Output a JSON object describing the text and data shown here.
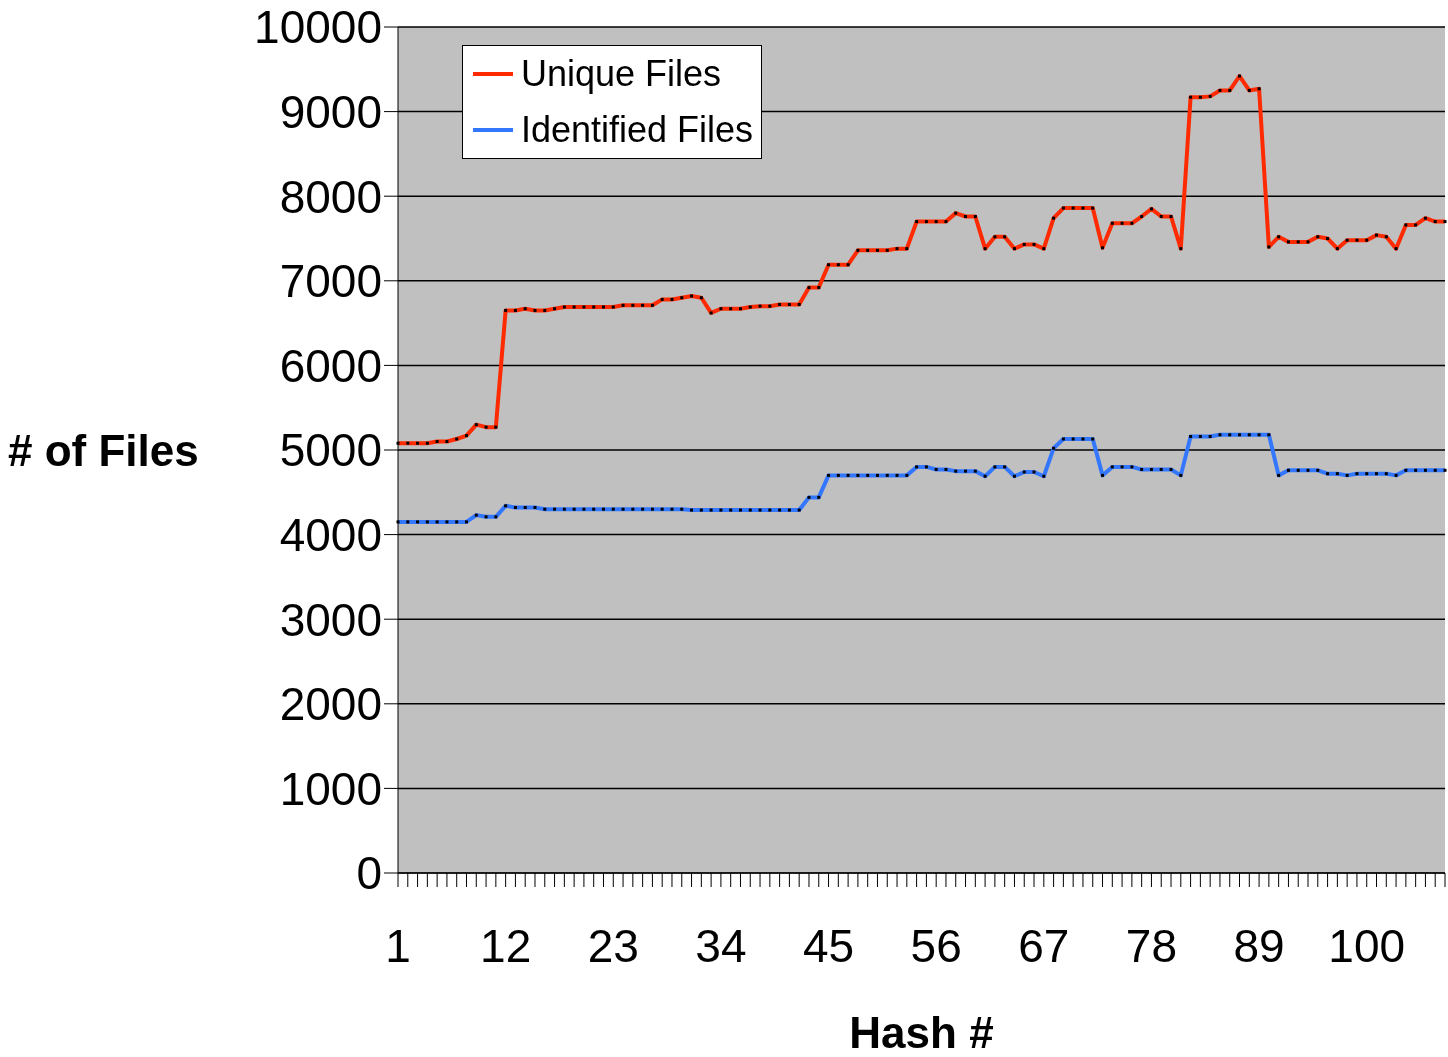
{
  "chart_data": {
    "type": "line",
    "xlabel": "Hash #",
    "ylabel": "# of Files",
    "categories": [
      "1",
      null,
      null,
      null,
      null,
      null,
      null,
      null,
      null,
      null,
      null,
      "12",
      null,
      null,
      null,
      null,
      null,
      null,
      null,
      null,
      null,
      null,
      "23",
      null,
      null,
      null,
      null,
      null,
      null,
      null,
      null,
      null,
      null,
      "34",
      null,
      null,
      null,
      null,
      null,
      null,
      null,
      null,
      null,
      null,
      "45",
      null,
      null,
      null,
      null,
      null,
      null,
      null,
      null,
      null,
      null,
      "56",
      null,
      null,
      null,
      null,
      null,
      null,
      null,
      null,
      null,
      null,
      "67",
      null,
      null,
      null,
      null,
      null,
      null,
      null,
      null,
      null,
      null,
      "78",
      null,
      null,
      null,
      null,
      null,
      null,
      null,
      null,
      null,
      null,
      "89",
      null,
      null,
      null,
      null,
      null,
      null,
      null,
      null,
      null,
      null,
      "100",
      null,
      null,
      null,
      null,
      null,
      null,
      null,
      null
    ],
    "series": [
      {
        "name": "Unique Files",
        "color": "#ff2a00",
        "values": [
          5080,
          5080,
          5080,
          5080,
          5100,
          5100,
          5130,
          5170,
          5300,
          5270,
          5270,
          6650,
          6650,
          6670,
          6650,
          6650,
          6670,
          6690,
          6690,
          6690,
          6690,
          6690,
          6690,
          6710,
          6710,
          6710,
          6710,
          6780,
          6780,
          6800,
          6820,
          6800,
          6620,
          6670,
          6670,
          6670,
          6690,
          6700,
          6700,
          6720,
          6720,
          6720,
          6920,
          6920,
          7190,
          7190,
          7190,
          7360,
          7360,
          7360,
          7360,
          7380,
          7380,
          7700,
          7700,
          7700,
          7700,
          7800,
          7760,
          7760,
          7380,
          7520,
          7520,
          7380,
          7430,
          7430,
          7380,
          7740,
          7860,
          7860,
          7860,
          7860,
          7390,
          7680,
          7680,
          7680,
          7760,
          7850,
          7760,
          7760,
          7380,
          9170,
          9170,
          9180,
          9250,
          9250,
          9420,
          9250,
          9270,
          7400,
          7520,
          7460,
          7460,
          7460,
          7520,
          7500,
          7380,
          7480,
          7480,
          7480,
          7540,
          7520,
          7380,
          7660,
          7660,
          7740,
          7700,
          7700
        ]
      },
      {
        "name": "Identified Files",
        "color": "#3377ff",
        "values": [
          4150,
          4150,
          4150,
          4150,
          4150,
          4150,
          4150,
          4150,
          4230,
          4210,
          4210,
          4340,
          4320,
          4320,
          4320,
          4300,
          4300,
          4300,
          4300,
          4300,
          4300,
          4300,
          4300,
          4300,
          4300,
          4300,
          4300,
          4300,
          4300,
          4300,
          4290,
          4290,
          4290,
          4290,
          4290,
          4290,
          4290,
          4290,
          4290,
          4290,
          4290,
          4290,
          4440,
          4440,
          4700,
          4700,
          4700,
          4700,
          4700,
          4700,
          4700,
          4700,
          4700,
          4800,
          4800,
          4770,
          4770,
          4750,
          4750,
          4750,
          4690,
          4800,
          4800,
          4690,
          4740,
          4740,
          4690,
          5020,
          5130,
          5130,
          5130,
          5130,
          4700,
          4800,
          4800,
          4800,
          4770,
          4770,
          4770,
          4770,
          4700,
          5160,
          5160,
          5160,
          5180,
          5180,
          5180,
          5180,
          5180,
          5180,
          4700,
          4760,
          4760,
          4760,
          4760,
          4720,
          4720,
          4700,
          4720,
          4720,
          4720,
          4720,
          4700,
          4760,
          4760,
          4760,
          4760,
          4760
        ]
      }
    ],
    "ylim": [
      0,
      10000
    ],
    "yticks": [
      0,
      1000,
      2000,
      3000,
      4000,
      5000,
      6000,
      7000,
      8000,
      9000,
      10000
    ],
    "grid": "y",
    "legend": "top left",
    "marker": "square"
  }
}
